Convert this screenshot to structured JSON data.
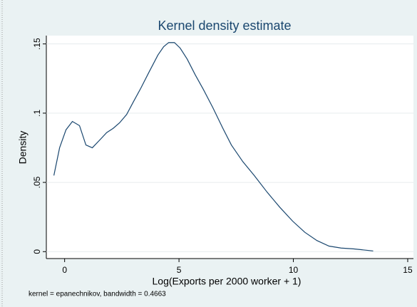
{
  "chart_data": {
    "type": "line",
    "title": "Kernel density estimate",
    "x_label": "Log(Exports per 2000 worker + 1)",
    "y_label": "Density",
    "note": "kernel = epanechnikov, bandwidth = 0.4663",
    "x": [
      -0.47,
      -0.22,
      0.06,
      0.34,
      0.65,
      0.93,
      1.21,
      1.5,
      1.84,
      2.12,
      2.4,
      2.71,
      3.0,
      3.33,
      3.7,
      4.08,
      4.33,
      4.55,
      4.8,
      5.05,
      5.36,
      5.7,
      6.07,
      6.48,
      6.92,
      7.29,
      7.79,
      8.29,
      8.85,
      9.41,
      9.97,
      10.5,
      11.03,
      11.56,
      12.09,
      12.62,
      13.49
    ],
    "series": [
      {
        "color": "#1a476f",
        "values": [
          0.055,
          0.075,
          0.088,
          0.094,
          0.091,
          0.077,
          0.075,
          0.08,
          0.086,
          0.089,
          0.093,
          0.099,
          0.108,
          0.118,
          0.13,
          0.142,
          0.148,
          0.151,
          0.151,
          0.147,
          0.139,
          0.128,
          0.117,
          0.104,
          0.089,
          0.077,
          0.065,
          0.055,
          0.043,
          0.032,
          0.022,
          0.014,
          0.008,
          0.004,
          0.0026,
          0.002,
          0.0005
        ]
      }
    ],
    "xlim": [
      -0.8,
      15.25
    ],
    "ylim": [
      -0.005,
      0.156
    ],
    "xticks": [
      0,
      5,
      10,
      15
    ],
    "yticks": [
      0,
      {
        "value": 0.05,
        "label": ".05"
      },
      {
        "value": 0.1,
        "label": ".1"
      },
      {
        "value": 0.15,
        "label": ".15"
      }
    ],
    "grid": true
  }
}
